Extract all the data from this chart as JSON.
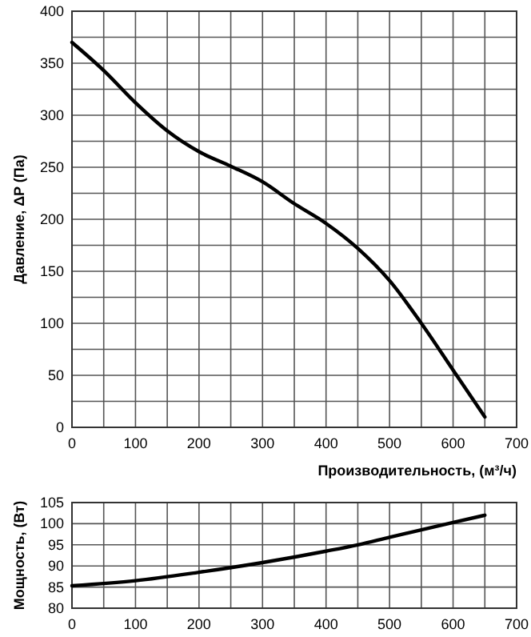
{
  "chart_data": [
    {
      "type": "line",
      "xlabel": "Производительность, (м³/ч)",
      "ylabel": "Давление, ΔP (Па)",
      "x": [
        0,
        50,
        100,
        150,
        200,
        250,
        300,
        350,
        400,
        450,
        500,
        550,
        600,
        650
      ],
      "values": [
        370,
        343,
        312,
        285,
        265,
        251,
        236,
        215,
        196,
        172,
        141,
        100,
        55,
        10
      ],
      "color": "#000000",
      "xlim": [
        0,
        700
      ],
      "ylim": [
        0,
        400
      ],
      "xticks": [
        0,
        {
          "value": 50,
          "label": null
        },
        100,
        {
          "value": 150,
          "label": null
        },
        200,
        {
          "value": 250,
          "label": null
        },
        300,
        {
          "value": 350,
          "label": null
        },
        400,
        {
          "value": 450,
          "label": null
        },
        500,
        {
          "value": 550,
          "label": null
        },
        600,
        {
          "value": 650,
          "label": null
        },
        700
      ],
      "yticks": [
        0,
        {
          "value": 25,
          "label": null
        },
        50,
        {
          "value": 75,
          "label": null
        },
        100,
        {
          "value": 125,
          "label": null
        },
        150,
        {
          "value": 175,
          "label": null
        },
        200,
        {
          "value": 225,
          "label": null
        },
        250,
        {
          "value": 275,
          "label": null
        },
        300,
        {
          "value": 325,
          "label": null
        },
        350,
        {
          "value": 375,
          "label": null
        },
        400
      ],
      "grid": true,
      "marker": "none",
      "line_style": "solid"
    },
    {
      "type": "line",
      "ylabel": "Мощность, (Вт)",
      "x": [
        0,
        100,
        200,
        300,
        400,
        450,
        500,
        600,
        650
      ],
      "values": [
        85.3,
        86.5,
        88.5,
        90.8,
        93.5,
        95,
        96.8,
        100.3,
        102
      ],
      "color": "#000000",
      "xlim": [
        0,
        700
      ],
      "ylim": [
        80,
        105
      ],
      "xticks": [
        0,
        {
          "value": 50,
          "label": null
        },
        100,
        {
          "value": 150,
          "label": null
        },
        200,
        {
          "value": 250,
          "label": null
        },
        300,
        {
          "value": 350,
          "label": null
        },
        400,
        {
          "value": 450,
          "label": null
        },
        500,
        {
          "value": 550,
          "label": null
        },
        600,
        {
          "value": 650,
          "label": null
        },
        700
      ],
      "yticks": [
        80,
        85,
        90,
        95,
        100,
        105
      ],
      "grid": true,
      "marker": "none",
      "line_style": "solid"
    }
  ]
}
